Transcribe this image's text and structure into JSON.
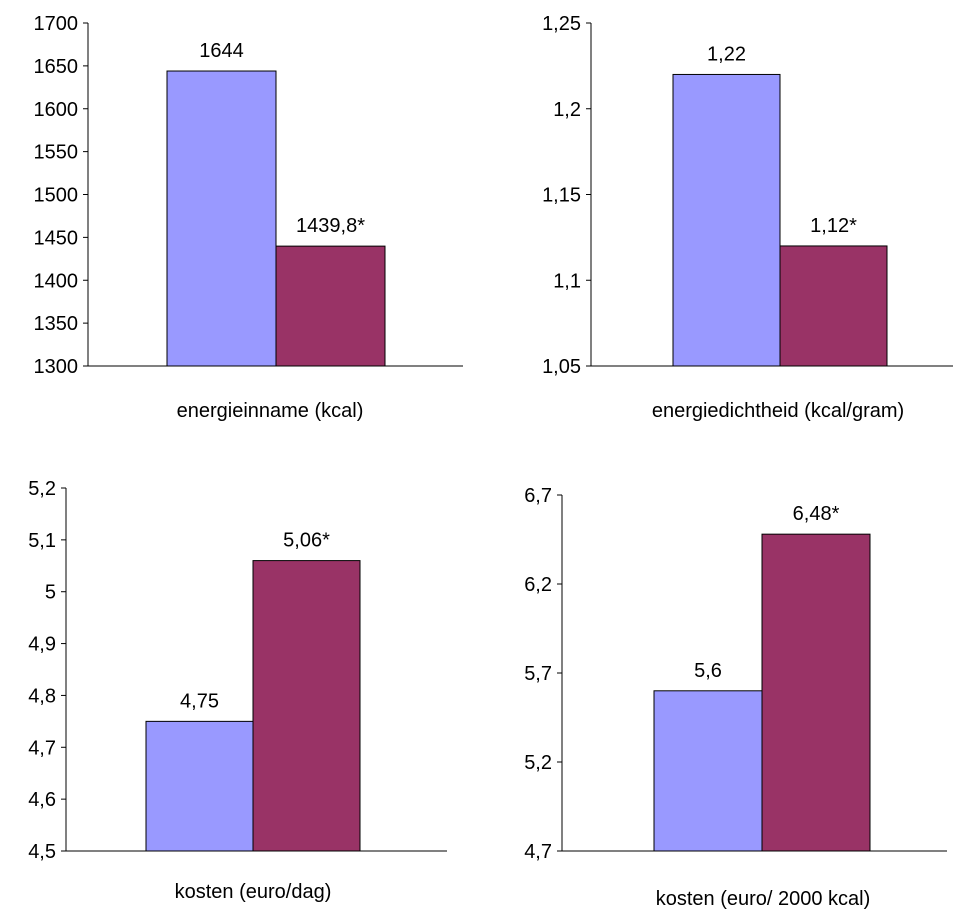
{
  "colors": {
    "series_a": "#9999ff",
    "series_b": "#993366"
  },
  "chart_data": [
    {
      "type": "bar",
      "categories": [
        "energieinname (kcal)"
      ],
      "xlabel": "energieinname (kcal)",
      "ylim": [
        1300,
        1700
      ],
      "yticks": [
        "1300",
        "1350",
        "1400",
        "1450",
        "1500",
        "1550",
        "1600",
        "1650",
        "1700"
      ],
      "series": [
        {
          "values": [
            1644
          ],
          "labels": [
            "1644"
          ]
        },
        {
          "values": [
            1439.8
          ],
          "labels": [
            "1439,8*"
          ]
        }
      ]
    },
    {
      "type": "bar",
      "categories": [
        "energiedichtheid (kcal/gram)"
      ],
      "xlabel": "energiedichtheid (kcal/gram)",
      "ylim": [
        1.05,
        1.25
      ],
      "yticks": [
        "1,05",
        "1,1",
        "1,15",
        "1,2",
        "1,25"
      ],
      "series": [
        {
          "values": [
            1.22
          ],
          "labels": [
            "1,22"
          ]
        },
        {
          "values": [
            1.12
          ],
          "labels": [
            "1,12*"
          ]
        }
      ]
    },
    {
      "type": "bar",
      "categories": [
        "kosten (euro/dag)"
      ],
      "xlabel": "kosten (euro/dag)",
      "ylim": [
        4.5,
        5.2
      ],
      "yticks": [
        "4,5",
        "4,6",
        "4,7",
        "4,8",
        "4,9",
        "5",
        "5,1",
        "5,2"
      ],
      "series": [
        {
          "values": [
            4.75
          ],
          "labels": [
            "4,75"
          ]
        },
        {
          "values": [
            5.06
          ],
          "labels": [
            "5,06*"
          ]
        }
      ]
    },
    {
      "type": "bar",
      "categories": [
        "kosten (euro/ 2000 kcal)"
      ],
      "xlabel": "kosten (euro/ 2000 kcal)",
      "ylim": [
        4.7,
        6.7
      ],
      "yticks": [
        "4,7",
        "5,2",
        "5,7",
        "6,2",
        "6,7"
      ],
      "series": [
        {
          "values": [
            5.6
          ],
          "labels": [
            "5,6"
          ]
        },
        {
          "values": [
            6.48
          ],
          "labels": [
            "6,48*"
          ]
        }
      ]
    }
  ]
}
